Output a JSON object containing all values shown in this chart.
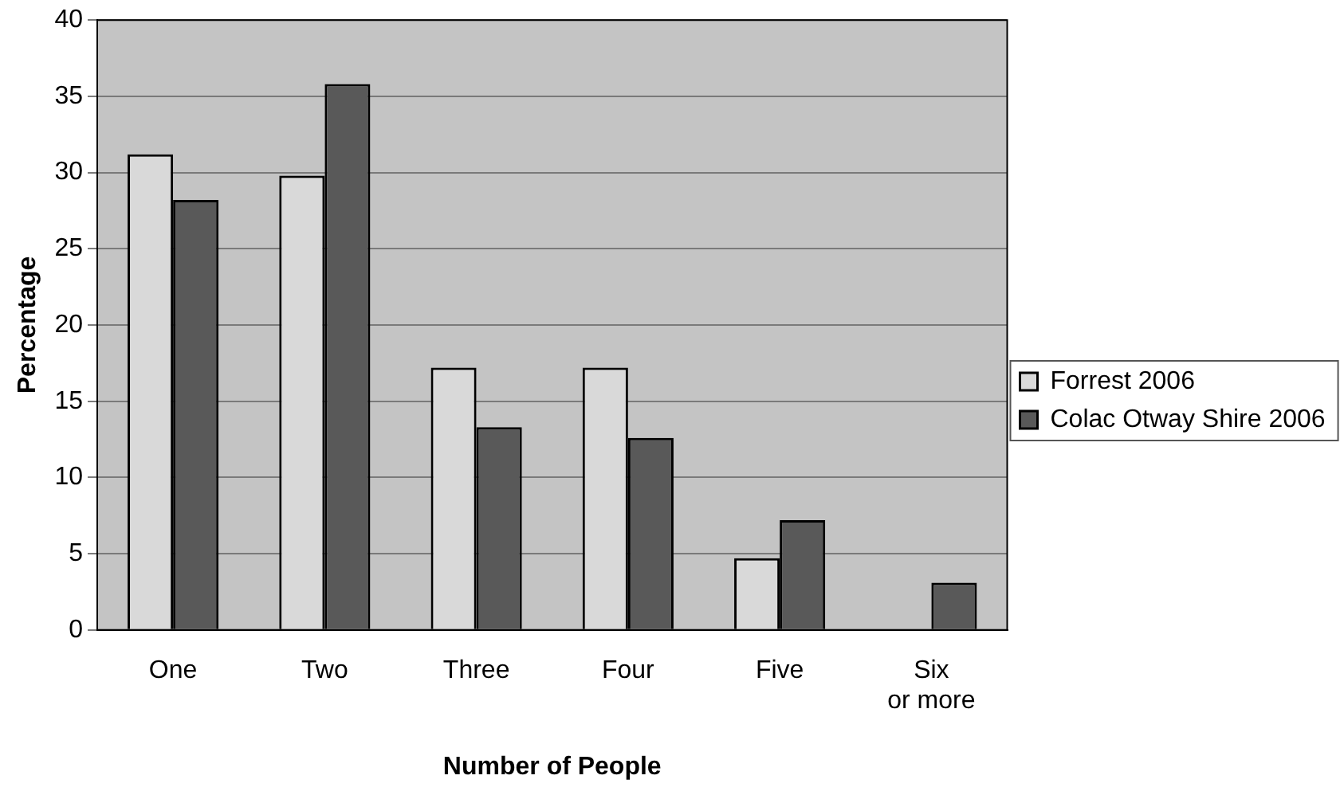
{
  "chart_data": {
    "type": "bar",
    "xlabel": "Number of People",
    "ylabel": "Percentage",
    "categories": [
      "One",
      "Two",
      "Three",
      "Four",
      "Five",
      "Six\nor more"
    ],
    "series": [
      {
        "name": "Forrest 2006",
        "color": "#d9d9d9",
        "values": [
          31.2,
          29.8,
          17.2,
          17.2,
          4.7,
          null
        ]
      },
      {
        "name": "Colac Otway Shire 2006",
        "color": "#595959",
        "values": [
          28.2,
          35.8,
          13.3,
          12.6,
          7.2,
          3.1
        ]
      }
    ],
    "ylim": [
      0,
      40
    ],
    "yticks": [
      0,
      5,
      10,
      15,
      20,
      25,
      30,
      35,
      40
    ],
    "grid": "y",
    "legend": "right"
  }
}
